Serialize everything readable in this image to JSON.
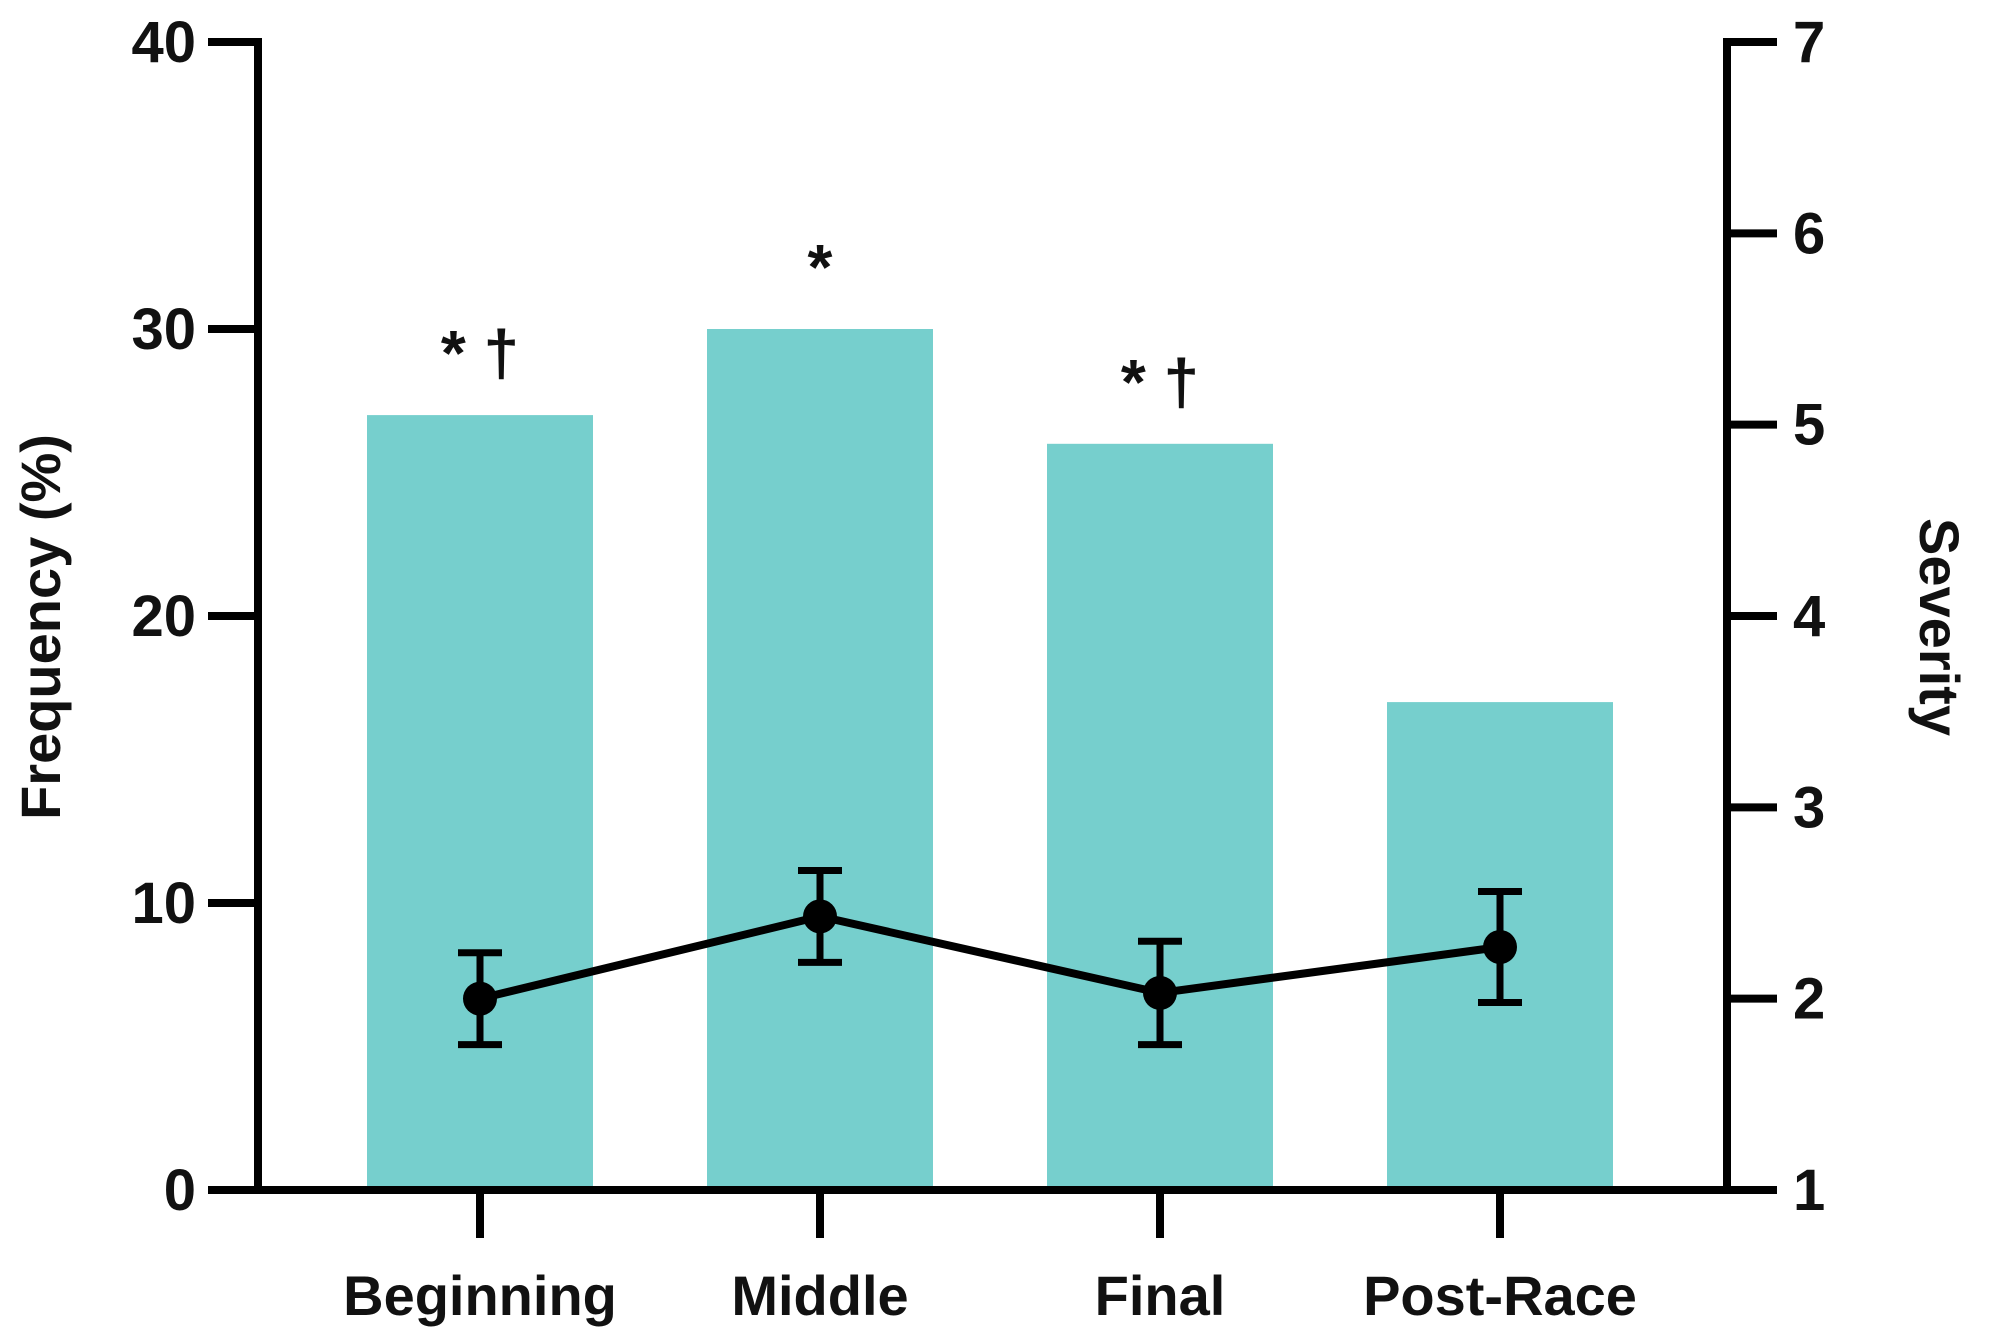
{
  "chart_data": {
    "type": "bar",
    "categories": [
      "Beginning",
      "Middle",
      "Final",
      "Post-Race"
    ],
    "bar_series": {
      "values": [
        27,
        30,
        26,
        17
      ],
      "color": "#76cfcd",
      "axis": "left"
    },
    "line_series": {
      "values": [
        2.0,
        2.43,
        2.03,
        2.27
      ],
      "error": [
        0.24,
        0.24,
        0.27,
        0.29
      ],
      "color": "#000000",
      "axis": "right"
    },
    "annotations": [
      "* †",
      "*",
      "* †",
      ""
    ],
    "ylabel": "Frequency (%)",
    "y2label": "Severity",
    "ylim": [
      0,
      40
    ],
    "y2lim": [
      1,
      7
    ],
    "yticks": [
      "0",
      "10",
      "20",
      "30",
      "40"
    ],
    "y2ticks": [
      "1",
      "2",
      "3",
      "4",
      "5",
      "6",
      "7"
    ],
    "grid": false
  }
}
